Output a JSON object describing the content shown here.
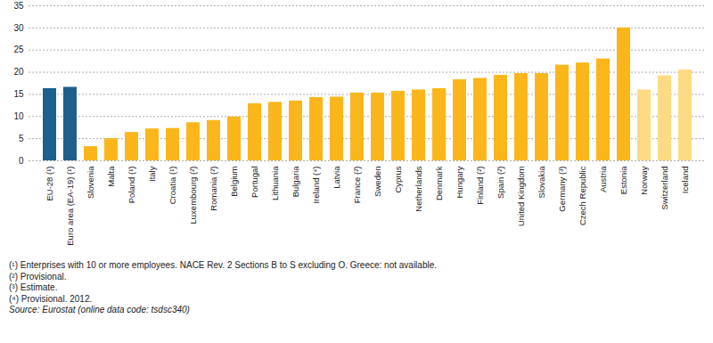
{
  "chart_data": {
    "type": "bar",
    "categories": [
      "EU-28 (¹)",
      "Euro area (EA-19) (¹)",
      "Slovenia",
      "Malta",
      "Poland (¹)",
      "Italy",
      "Croatia (¹)",
      "Luxembourg (²)",
      "Romania (²)",
      "Belgium",
      "Portugal",
      "Lithuania",
      "Bulgaria",
      "Ireland (⁴)",
      "Latvia",
      "France (²)",
      "Sweden",
      "Cyprus",
      "Netherlands",
      "Denmark",
      "Hungary",
      "Finland (²)",
      "Spain (²)",
      "United Kingdom",
      "Slovakia",
      "Germany (³)",
      "Czech Republic",
      "Austria",
      "Estonia",
      "Norway",
      "Switzerland",
      "Iceland"
    ],
    "values": [
      16.3,
      16.6,
      3.2,
      5.0,
      6.4,
      7.2,
      7.3,
      8.6,
      9.1,
      9.9,
      12.9,
      13.2,
      13.5,
      14.3,
      14.4,
      15.3,
      15.3,
      15.7,
      16.0,
      16.3,
      18.3,
      18.6,
      19.3,
      19.7,
      19.7,
      21.6,
      22.1,
      23.0,
      30.0,
      16.0,
      19.2,
      20.5
    ],
    "colors": [
      "#1f5f8b",
      "#1f5f8b",
      "#fbb61b",
      "#fbb61b",
      "#fbb61b",
      "#fbb61b",
      "#fbb61b",
      "#fbb61b",
      "#fbb61b",
      "#fbb61b",
      "#fbb61b",
      "#fbb61b",
      "#fbb61b",
      "#fbb61b",
      "#fbb61b",
      "#fbb61b",
      "#fbb61b",
      "#fbb61b",
      "#fbb61b",
      "#fbb61b",
      "#fbb61b",
      "#fbb61b",
      "#fbb61b",
      "#fbb61b",
      "#fbb61b",
      "#fbb61b",
      "#fbb61b",
      "#fbb61b",
      "#fbb61b",
      "#fddb82",
      "#fddb82",
      "#fddb82"
    ],
    "ylim": [
      0,
      35
    ],
    "yticks": [
      0,
      5,
      10,
      15,
      20,
      25,
      30,
      35
    ],
    "grid": true,
    "notes": [
      "(¹) Enterprises with 10 or more employees. NACE Rev. 2 Sections B to S excluding O. Greece: not available.",
      "(²) Provisional.",
      "(³) Estimate.",
      "(⁴) Provisional. 2012."
    ],
    "source": "Source: Eurostat (online data code: tsdsc340)"
  }
}
